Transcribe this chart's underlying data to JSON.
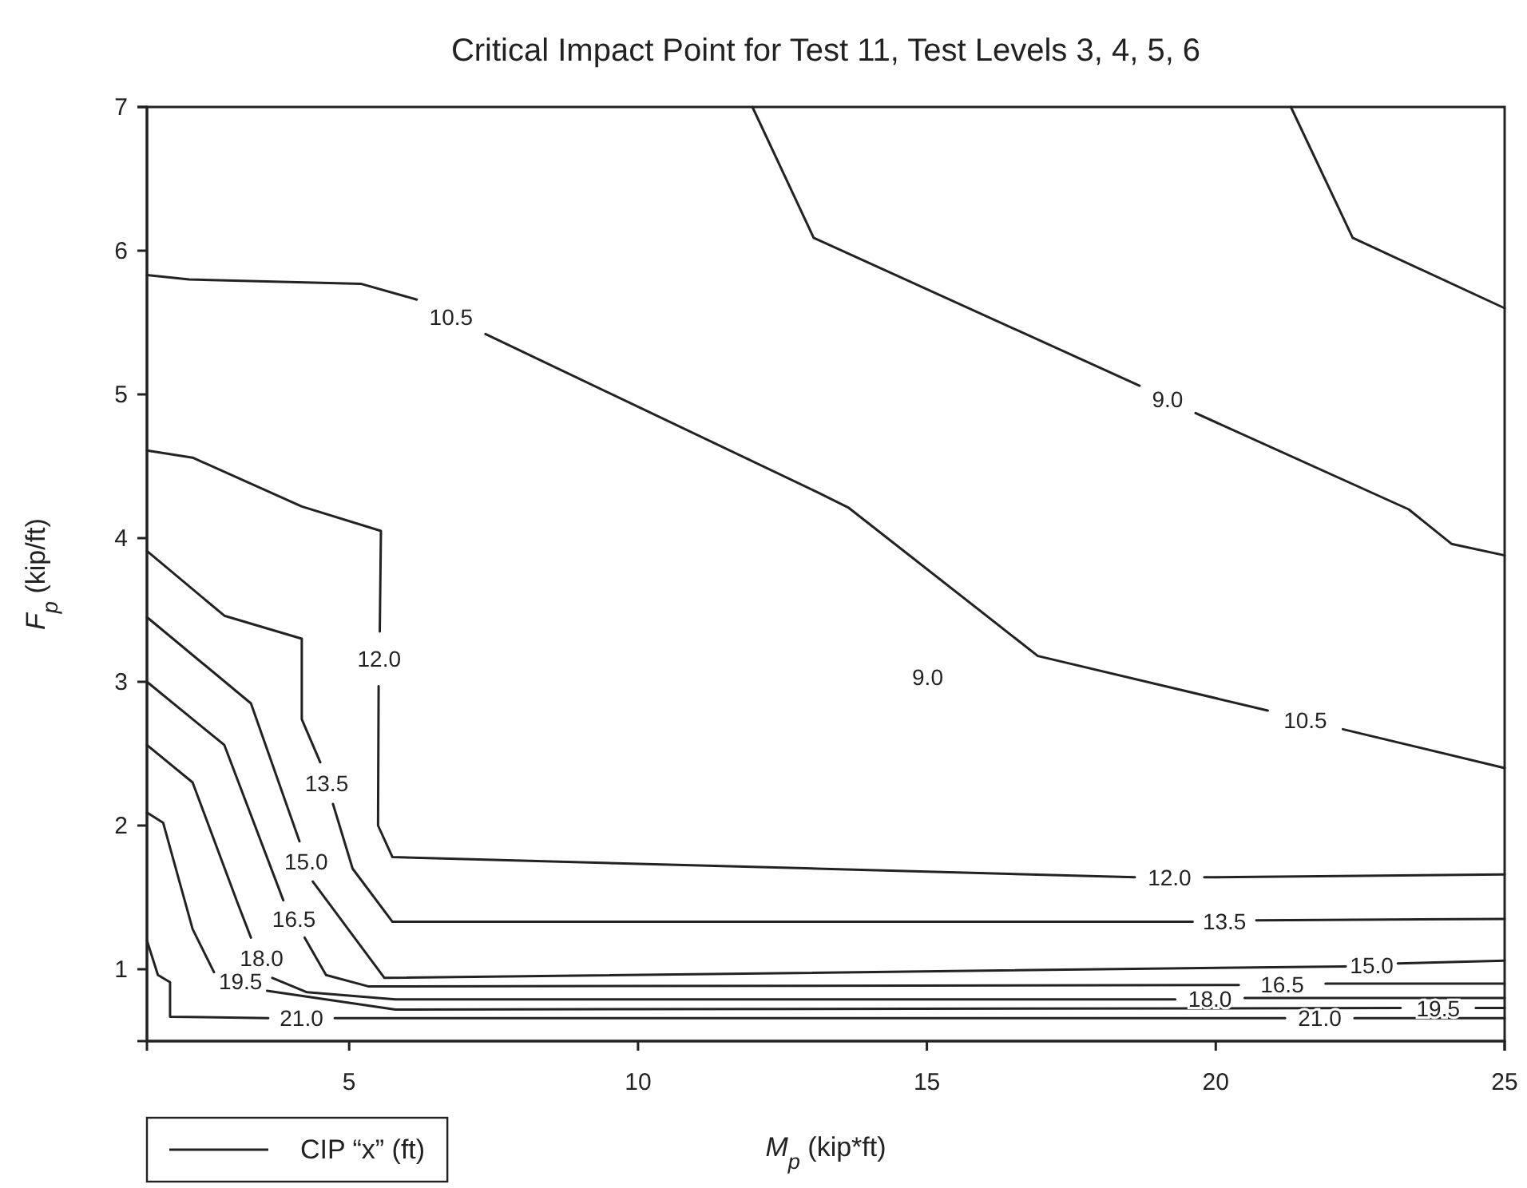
{
  "chart_data": {
    "type": "line",
    "title": "Critical Impact Point for Test 11, Test Levels 3, 4, 5, 6",
    "xlabel": "M$_{p}$ (kip*ft)",
    "ylabel": "F$_{p}$ (kip/ft)",
    "legend_title": "CIP “x” (ft)",
    "xlim": [
      1.5,
      25
    ],
    "ylim": [
      0.5,
      7
    ],
    "xticks": [
      5,
      10,
      15,
      20,
      25
    ],
    "yticks": [
      1,
      2,
      3,
      4,
      5,
      6,
      7
    ],
    "grid": false,
    "legend": "bottom left",
    "line_style": "solid",
    "series": [
      {
        "name": "10.5",
        "color": "#222222",
        "x": [
          1.5,
          2.23,
          5.2,
          6.17,
          6.77,
          7.36,
          13.1,
          13.65,
          16.92,
          20.9,
          21.55,
          22.2,
          25
        ],
        "values": [
          5.83,
          5.8,
          5.77,
          5.66,
          null,
          5.42,
          4.32,
          4.21,
          3.18,
          2.8,
          null,
          2.67,
          2.4
        ]
      },
      {
        "name": "9.0",
        "color": "#222222",
        "x": [
          11.98,
          13.04,
          18.68,
          19.17,
          19.65,
          23.34,
          24.08,
          25
        ],
        "values": [
          7,
          6.09,
          5.06,
          null,
          4.87,
          4.2,
          3.96,
          3.88
        ]
      },
      {
        "color": "#222222",
        "x": [
          21.3,
          22.37,
          25
        ],
        "values": [
          7,
          6.09,
          5.6
        ]
      },
      {
        "name": "12.0",
        "color": "#222222",
        "x": [
          1.5,
          2.29,
          4.18,
          5.55,
          5.53,
          5.52,
          5.51,
          5.5,
          5.75,
          13.1,
          18.6,
          19.2,
          19.8,
          25
        ],
        "values": [
          4.61,
          4.56,
          4.22,
          4.05,
          3.35,
          null,
          2.97,
          2.0,
          1.78,
          1.7,
          1.64,
          null,
          1.64,
          1.66
        ]
      },
      {
        "name": "13.5",
        "color": "#222222",
        "x": [
          1.5,
          2.84,
          4.18,
          4.18,
          4.5,
          4.61,
          4.72,
          5.06,
          5.75,
          19.6,
          20.15,
          20.7,
          25
        ],
        "values": [
          3.91,
          3.46,
          3.3,
          2.74,
          2.44,
          null,
          2.15,
          1.7,
          1.33,
          1.33,
          null,
          1.34,
          1.35
        ]
      },
      {
        "name": "15.0",
        "color": "#222222",
        "x": [
          1.5,
          3.3,
          4.14,
          4.26,
          4.37,
          5.61,
          22.25,
          22.7,
          23.15,
          25
        ],
        "values": [
          3.45,
          2.85,
          1.89,
          null,
          1.61,
          0.94,
          1.02,
          null,
          1.04,
          1.06
        ]
      },
      {
        "name": "16.5",
        "color": "#222222",
        "x": [
          1.5,
          2.84,
          3.86,
          4.05,
          4.23,
          4.6,
          5.34,
          20.4,
          21.15,
          21.9,
          25
        ],
        "values": [
          3.0,
          2.56,
          1.48,
          null,
          1.22,
          0.96,
          0.88,
          0.89,
          null,
          0.9,
          0.9
        ]
      },
      {
        "name": "18.0",
        "color": "#222222",
        "x": [
          1.5,
          2.29,
          3.07,
          3.3,
          3.49,
          3.67,
          4.27,
          5.8,
          19.3,
          19.9,
          20.5,
          25
        ],
        "values": [
          2.56,
          2.3,
          1.46,
          1.22,
          null,
          0.94,
          0.84,
          0.79,
          0.79,
          null,
          0.8,
          0.8
        ]
      },
      {
        "name": "19.5",
        "color": "#222222",
        "x": [
          1.5,
          1.78,
          2.29,
          2.66,
          3.12,
          3.58,
          5.8,
          23.2,
          23.85,
          24.5,
          25
        ],
        "values": [
          2.09,
          2.02,
          1.28,
          0.98,
          null,
          0.85,
          0.72,
          0.73,
          null,
          0.73,
          0.73
        ]
      },
      {
        "name": "21.0",
        "color": "#222222",
        "x": [
          1.5,
          1.69,
          1.9,
          1.9,
          3.6,
          4.18,
          4.75,
          21.2,
          21.8,
          22.4,
          25
        ],
        "values": [
          1.2,
          0.96,
          0.91,
          0.67,
          0.66,
          null,
          0.66,
          0.66,
          null,
          0.66,
          0.66
        ]
      }
    ],
    "annotations": [
      "9.0"
    ]
  }
}
